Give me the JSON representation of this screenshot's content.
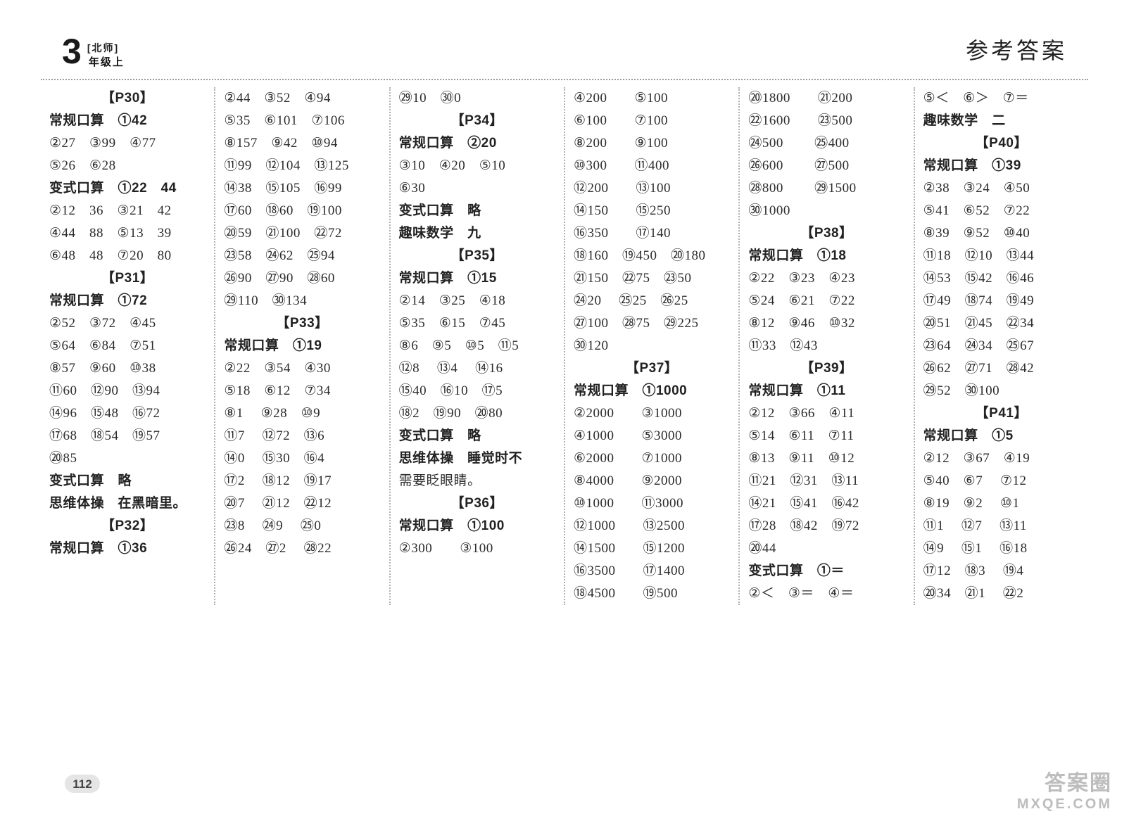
{
  "meta": {
    "badge_number": "3",
    "badge_bracket": "[北师]",
    "badge_grade": "年级上",
    "page_title": "参考答案",
    "page_number": "112",
    "watermark1": "答案圈",
    "watermark2": "MXQE.COM"
  },
  "columns": [
    [
      {
        "text": "【P30】",
        "cls": "hd ctr"
      },
      {
        "text": "常规口算　①42",
        "cls": "hd"
      },
      {
        "text": "②27　③99　④77"
      },
      {
        "text": "⑤26　⑥28"
      },
      {
        "text": "变式口算　①22　44",
        "cls": "hd"
      },
      {
        "text": "②12　36　③21　42"
      },
      {
        "text": "④44　88　⑤13　39"
      },
      {
        "text": "⑥48　48　⑦20　80"
      },
      {
        "text": "【P31】",
        "cls": "hd ctr"
      },
      {
        "text": "常规口算　①72",
        "cls": "hd"
      },
      {
        "text": "②52　③72　④45"
      },
      {
        "text": "⑤64　⑥84　⑦51"
      },
      {
        "text": "⑧57　⑨60　⑩38"
      },
      {
        "text": "⑪60　⑫90　⑬94"
      },
      {
        "text": "⑭96　⑮48　⑯72"
      },
      {
        "text": "⑰68　⑱54　⑲57"
      },
      {
        "text": "⑳85"
      },
      {
        "text": "变式口算　略",
        "cls": "hd"
      },
      {
        "text": "思维体操　在黑暗里。",
        "cls": "hd"
      },
      {
        "text": "【P32】",
        "cls": "hd ctr"
      },
      {
        "text": "常规口算　①36",
        "cls": "hd"
      }
    ],
    [
      {
        "text": "②44　③52　④94"
      },
      {
        "text": "⑤35　⑥101　⑦106"
      },
      {
        "text": "⑧157　⑨42　⑩94"
      },
      {
        "text": "⑪99　⑫104　⑬125"
      },
      {
        "text": "⑭38　⑮105　⑯99"
      },
      {
        "text": "⑰60　⑱60　⑲100"
      },
      {
        "text": "⑳59　㉑100　㉒72"
      },
      {
        "text": "㉓58　㉔62　㉕94"
      },
      {
        "text": "㉖90　㉗90　㉘60"
      },
      {
        "text": "㉙110　㉚134"
      },
      {
        "text": "【P33】",
        "cls": "hd ctr"
      },
      {
        "text": "常规口算　①19",
        "cls": "hd"
      },
      {
        "text": "②22　③54　④30"
      },
      {
        "text": "⑤18　⑥12　⑦34"
      },
      {
        "text": "⑧1　 ⑨28　⑩9"
      },
      {
        "text": "⑪7　 ⑫72　⑬6"
      },
      {
        "text": "⑭0　 ⑮30　⑯4"
      },
      {
        "text": "⑰2　 ⑱12　⑲17"
      },
      {
        "text": "⑳7　 ㉑12　㉒12"
      },
      {
        "text": "㉓8　 ㉔9　 ㉕0"
      },
      {
        "text": "㉖24　㉗2　 ㉘22"
      }
    ],
    [
      {
        "text": "㉙10　㉚0"
      },
      {
        "text": "【P34】",
        "cls": "hd ctr"
      },
      {
        "text": "常规口算　②20",
        "cls": "hd"
      },
      {
        "text": "③10　④20　⑤10"
      },
      {
        "text": "⑥30"
      },
      {
        "text": "变式口算　略",
        "cls": "hd"
      },
      {
        "text": "趣味数学　九",
        "cls": "hd"
      },
      {
        "text": "【P35】",
        "cls": "hd ctr"
      },
      {
        "text": "常规口算　①15",
        "cls": "hd"
      },
      {
        "text": "②14　③25　④18"
      },
      {
        "text": "⑤35　⑥15　⑦45"
      },
      {
        "text": "⑧6　⑨5　⑩5　⑪5"
      },
      {
        "text": "⑫8　 ⑬4　 ⑭16"
      },
      {
        "text": "⑮40　⑯10　⑰5"
      },
      {
        "text": "⑱2　⑲90　⑳80"
      },
      {
        "text": "变式口算　略",
        "cls": "hd"
      },
      {
        "text": "思维体操　睡觉时不",
        "cls": "hd"
      },
      {
        "text": "需要眨眼睛。"
      },
      {
        "text": "【P36】",
        "cls": "hd ctr"
      },
      {
        "text": "常规口算　①100",
        "cls": "hd"
      },
      {
        "text": "②300　　③100"
      }
    ],
    [
      {
        "text": "④200　　⑤100"
      },
      {
        "text": "⑥100　　⑦100"
      },
      {
        "text": "⑧200　　⑨100"
      },
      {
        "text": "⑩300　　⑪400"
      },
      {
        "text": "⑫200　　⑬100"
      },
      {
        "text": "⑭150　　⑮250"
      },
      {
        "text": "⑯350　　⑰140"
      },
      {
        "text": "⑱160　⑲450　⑳180"
      },
      {
        "text": "㉑150　㉒75　㉓50"
      },
      {
        "text": "㉔20　 ㉕25　㉖25"
      },
      {
        "text": "㉗100　㉘75　㉙225"
      },
      {
        "text": "㉚120"
      },
      {
        "text": "【P37】",
        "cls": "hd ctr"
      },
      {
        "text": "常规口算　①1000",
        "cls": "hd"
      },
      {
        "text": "②2000　　③1000"
      },
      {
        "text": "④1000　　⑤3000"
      },
      {
        "text": "⑥2000　　⑦1000"
      },
      {
        "text": "⑧4000　　⑨2000"
      },
      {
        "text": "⑩1000　　⑪3000"
      },
      {
        "text": "⑫1000　　⑬2500"
      },
      {
        "text": "⑭1500　　⑮1200"
      },
      {
        "text": "⑯3500　　⑰1400"
      },
      {
        "text": "⑱4500　　⑲500"
      }
    ],
    [
      {
        "text": "⑳1800　　㉑200"
      },
      {
        "text": "㉒1600　　㉓500"
      },
      {
        "text": "㉔500　　 ㉕400"
      },
      {
        "text": "㉖600　　 ㉗500"
      },
      {
        "text": "㉘800　　 ㉙1500"
      },
      {
        "text": "㉚1000"
      },
      {
        "text": "【P38】",
        "cls": "hd ctr"
      },
      {
        "text": "常规口算　①18",
        "cls": "hd"
      },
      {
        "text": "②22　③23　④23"
      },
      {
        "text": "⑤24　⑥21　⑦22"
      },
      {
        "text": "⑧12　⑨46　⑩32"
      },
      {
        "text": "⑪33　⑫43"
      },
      {
        "text": "【P39】",
        "cls": "hd ctr"
      },
      {
        "text": "常规口算　①11",
        "cls": "hd"
      },
      {
        "text": "②12　③66　④11"
      },
      {
        "text": "⑤14　⑥11　⑦11"
      },
      {
        "text": "⑧13　⑨11　⑩12"
      },
      {
        "text": "⑪21　⑫31　⑬11"
      },
      {
        "text": "⑭21　⑮41　⑯42"
      },
      {
        "text": "⑰28　⑱42　⑲72"
      },
      {
        "text": "⑳44"
      },
      {
        "text": "变式口算　①＝",
        "cls": "hd"
      },
      {
        "text": "②＜　③＝　④＝"
      }
    ],
    [
      {
        "text": "⑤＜　⑥＞　⑦＝"
      },
      {
        "text": "趣味数学　二",
        "cls": "hd"
      },
      {
        "text": "【P40】",
        "cls": "hd ctr"
      },
      {
        "text": "常规口算　①39",
        "cls": "hd"
      },
      {
        "text": "②38　③24　④50"
      },
      {
        "text": "⑤41　⑥52　⑦22"
      },
      {
        "text": "⑧39　⑨52　⑩40"
      },
      {
        "text": "⑪18　⑫10　⑬44"
      },
      {
        "text": "⑭53　⑮42　⑯46"
      },
      {
        "text": "⑰49　⑱74　⑲49"
      },
      {
        "text": "⑳51　㉑45　㉒34"
      },
      {
        "text": "㉓64　㉔34　㉕67"
      },
      {
        "text": "㉖62　㉗71　㉘42"
      },
      {
        "text": "㉙52　㉚100"
      },
      {
        "text": "【P41】",
        "cls": "hd ctr"
      },
      {
        "text": "常规口算　①5",
        "cls": "hd"
      },
      {
        "text": "②12　③67　④19"
      },
      {
        "text": "⑤40　⑥7　 ⑦12"
      },
      {
        "text": "⑧19　⑨2　 ⑩1"
      },
      {
        "text": "⑪1　 ⑫7　 ⑬11"
      },
      {
        "text": "⑭9　 ⑮1　 ⑯18"
      },
      {
        "text": "⑰12　⑱3　 ⑲4"
      },
      {
        "text": "⑳34　㉑1　 ㉒2"
      }
    ]
  ]
}
